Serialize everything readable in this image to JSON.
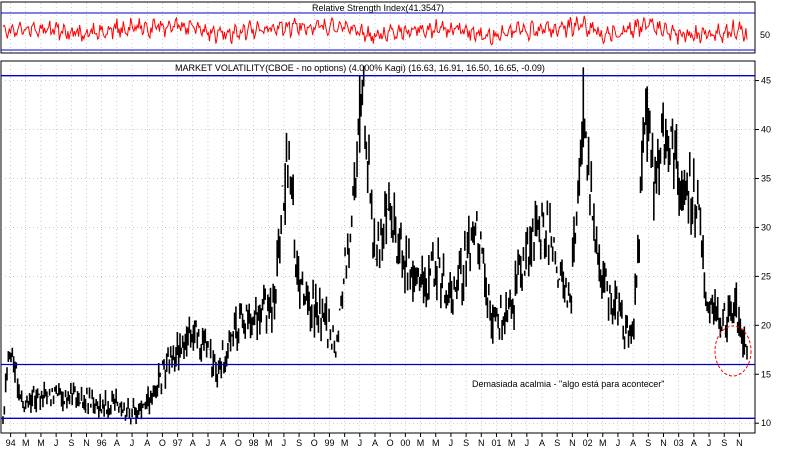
{
  "rsi_panel": {
    "title": "Relative Strength Index(41.3547)",
    "level_label": "50"
  },
  "main_panel": {
    "title": "MARKET VOLATILITY(CBOE - no options) (4.000% Kagi) (16.63, 16.91, 16.50, 16.65, -0.09)",
    "annotation": "Demasiada acalmia - \"algo está para acontecer\""
  },
  "colors": {
    "price_bars": "#000000",
    "rsi_line": "#ff0000",
    "horizontal_levels": "#0000cc",
    "grid": "#9a9a9a",
    "annotation_circle": "#ff0000"
  },
  "chart_data": [
    {
      "type": "line",
      "name": "Relative Strength Index",
      "x_range": [
        "1994-01",
        "2003-11"
      ],
      "ylim": [
        30,
        70
      ],
      "reference_level": 50,
      "current_value": 41.3547,
      "y_tick_labels": [
        "50"
      ],
      "peaks": [
        {
          "x": "1994-06",
          "y": 62
        },
        {
          "x": "1995-07",
          "y": 60
        },
        {
          "x": "1996-07",
          "y": 61
        },
        {
          "x": "1997-10",
          "y": 63
        },
        {
          "x": "1998-08",
          "y": 64
        },
        {
          "x": "1999-10",
          "y": 62
        },
        {
          "x": "2001-09",
          "y": 68
        },
        {
          "x": "2002-07",
          "y": 67
        },
        {
          "x": "2003-10",
          "y": 60
        }
      ],
      "troughs": [
        {
          "x": "1995-01",
          "y": 40
        },
        {
          "x": "1996-11",
          "y": 41
        },
        {
          "x": "1998-11",
          "y": 38
        },
        {
          "x": "2000-06",
          "y": 39
        },
        {
          "x": "2001-12",
          "y": 37
        },
        {
          "x": "2002-12",
          "y": 38
        },
        {
          "x": "2003-06",
          "y": 39
        },
        {
          "x": "2003-11",
          "y": 41.35
        }
      ]
    },
    {
      "type": "bar",
      "name": "MARKET VOLATILITY (CBOE - no options)",
      "style": "daily OHLC bars",
      "last_bar": {
        "open": 16.63,
        "high": 16.91,
        "low": 16.5,
        "close": 16.65,
        "change": -0.09
      },
      "ylim": [
        9,
        47
      ],
      "y_ticks": [
        10,
        15,
        20,
        25,
        30,
        35,
        40,
        45
      ],
      "x_tick_labels": [
        "94",
        "M",
        "M",
        "J",
        "S",
        "N",
        "96",
        "A",
        "J",
        "A",
        "O",
        "97",
        "A",
        "J",
        "A",
        "O",
        "98",
        "M",
        "J",
        "S",
        "O",
        "99",
        "M",
        "J",
        "A",
        "O",
        "00",
        "M",
        "M",
        "J",
        "S",
        "N",
        "01",
        "M",
        "J",
        "A",
        "S",
        "N",
        "02",
        "M",
        "J",
        "A",
        "S",
        "N",
        "03",
        "A",
        "J",
        "S",
        "N"
      ],
      "horizontal_levels": [
        45.5,
        16.0,
        10.5
      ],
      "approximate_path": [
        {
          "date": "1994-01",
          "value": 11
        },
        {
          "date": "1994-02",
          "value": 18
        },
        {
          "date": "1994-04",
          "value": 12
        },
        {
          "date": "1994-10",
          "value": 13
        },
        {
          "date": "1995-06",
          "value": 12
        },
        {
          "date": "1995-11",
          "value": 11
        },
        {
          "date": "1996-04",
          "value": 17
        },
        {
          "date": "1996-07",
          "value": 20
        },
        {
          "date": "1996-11",
          "value": 16
        },
        {
          "date": "1997-04",
          "value": 21
        },
        {
          "date": "1997-08",
          "value": 22
        },
        {
          "date": "1997-10",
          "value": 38
        },
        {
          "date": "1997-12",
          "value": 24
        },
        {
          "date": "1998-04",
          "value": 20
        },
        {
          "date": "1998-06",
          "value": 18
        },
        {
          "date": "1998-08",
          "value": 30
        },
        {
          "date": "1998-10",
          "value": 45.5
        },
        {
          "date": "1998-12",
          "value": 26
        },
        {
          "date": "1999-02",
          "value": 32
        },
        {
          "date": "1999-05",
          "value": 26
        },
        {
          "date": "1999-08",
          "value": 24
        },
        {
          "date": "1999-10",
          "value": 26
        },
        {
          "date": "1999-12",
          "value": 22
        },
        {
          "date": "2000-04",
          "value": 30
        },
        {
          "date": "2000-06",
          "value": 22
        },
        {
          "date": "2000-09",
          "value": 20
        },
        {
          "date": "2000-12",
          "value": 28
        },
        {
          "date": "2001-03",
          "value": 30
        },
        {
          "date": "2001-07",
          "value": 22
        },
        {
          "date": "2001-09",
          "value": 43
        },
        {
          "date": "2001-11",
          "value": 27
        },
        {
          "date": "2002-03",
          "value": 20
        },
        {
          "date": "2002-05",
          "value": 19
        },
        {
          "date": "2002-07",
          "value": 45
        },
        {
          "date": "2002-08",
          "value": 35
        },
        {
          "date": "2002-10",
          "value": 40
        },
        {
          "date": "2003-01",
          "value": 34
        },
        {
          "date": "2003-03",
          "value": 32
        },
        {
          "date": "2003-05",
          "value": 22
        },
        {
          "date": "2003-07",
          "value": 20
        },
        {
          "date": "2003-09",
          "value": 22
        },
        {
          "date": "2003-11",
          "value": 16.65
        }
      ]
    }
  ]
}
